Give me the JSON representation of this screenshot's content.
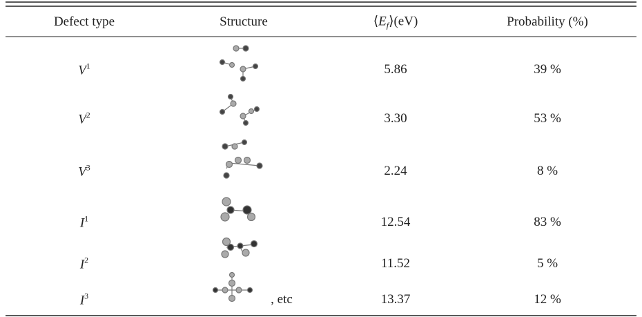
{
  "table": {
    "header": [
      "Defect type",
      "Structure",
      {
        "open": "⟨",
        "symbol": "E",
        "sub": "f",
        "close": "⟩(eV)"
      },
      "Probability (%)"
    ],
    "rows": [
      [
        {
          "base": "V",
          "sup": "1"
        },
        "5.86",
        "39 %"
      ],
      [
        {
          "base": "V",
          "sup": "2"
        },
        "3.30",
        "53 %"
      ],
      [
        {
          "base": "V",
          "sup": "3"
        },
        "2.24",
        "8 %"
      ],
      [
        {
          "base": "I",
          "sup": "1"
        },
        "12.54",
        "83 %"
      ],
      [
        {
          "base": "I",
          "sup": "2"
        },
        "11.52",
        "5 %"
      ],
      [
        {
          "base": "I",
          "sup": "3"
        },
        "13.37",
        "12 %"
      ]
    ],
    "structure_suffix": ", etc"
  }
}
